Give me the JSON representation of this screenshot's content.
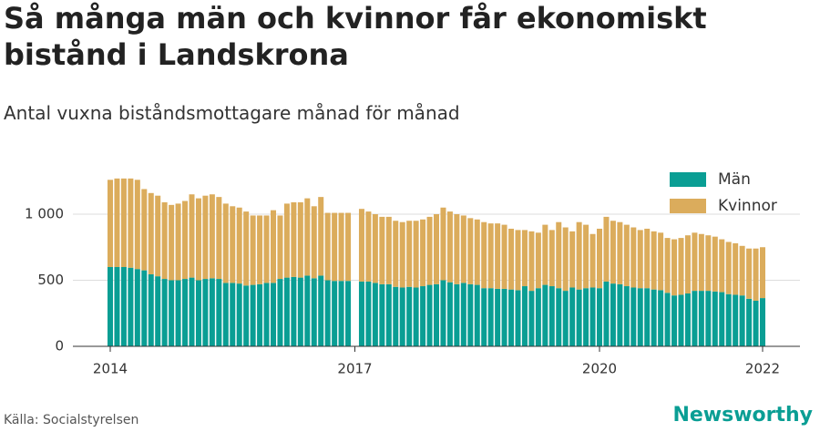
{
  "chart_data": {
    "type": "stacked_bar",
    "title": "Så många män och kvinnor får ekonomiskt bistånd i Landskrona",
    "subtitle": "Antal vuxna biståndsmottagare månad för månad",
    "source": "Källa: Socialstyrelsen",
    "brand": "Newsworthy",
    "categories": [
      "2014",
      null,
      null,
      null,
      null,
      null,
      null,
      null,
      null,
      null,
      null,
      null,
      null,
      null,
      null,
      null,
      null,
      null,
      null,
      null,
      null,
      null,
      null,
      null,
      null,
      null,
      null,
      null,
      null,
      null,
      null,
      null,
      null,
      null,
      null,
      null,
      "2017",
      null,
      null,
      null,
      null,
      null,
      null,
      null,
      null,
      null,
      null,
      null,
      null,
      null,
      null,
      null,
      null,
      null,
      null,
      null,
      null,
      null,
      null,
      null,
      null,
      null,
      null,
      null,
      null,
      null,
      null,
      null,
      null,
      null,
      null,
      null,
      "2020",
      null,
      null,
      null,
      null,
      null,
      null,
      null,
      null,
      null,
      null,
      null,
      null,
      null,
      null,
      null,
      null,
      null,
      null,
      null,
      null,
      null,
      null,
      null,
      "2022"
    ],
    "series": [
      {
        "name": "Män",
        "color": "#0a9e94",
        "values": [
          600,
          600,
          600,
          595,
          585,
          575,
          545,
          530,
          510,
          500,
          500,
          510,
          520,
          500,
          510,
          515,
          510,
          480,
          480,
          475,
          460,
          465,
          470,
          480,
          480,
          510,
          520,
          525,
          520,
          535,
          515,
          535,
          500,
          495,
          495,
          495,
          null,
          490,
          490,
          480,
          470,
          470,
          450,
          445,
          450,
          445,
          455,
          465,
          470,
          500,
          485,
          470,
          480,
          470,
          465,
          440,
          440,
          435,
          435,
          430,
          425,
          455,
          420,
          440,
          465,
          455,
          440,
          420,
          445,
          430,
          440,
          445,
          440,
          490,
          475,
          470,
          455,
          445,
          440,
          440,
          430,
          425,
          405,
          385,
          390,
          400,
          420,
          420,
          420,
          415,
          410,
          395,
          390,
          385,
          360,
          345,
          365
        ]
      },
      {
        "name": "Kvinnor",
        "color": "#dbac5c",
        "values": [
          660,
          670,
          670,
          675,
          675,
          615,
          615,
          610,
          580,
          570,
          580,
          590,
          630,
          620,
          630,
          635,
          620,
          600,
          580,
          575,
          560,
          525,
          520,
          510,
          550,
          480,
          560,
          565,
          570,
          585,
          545,
          595,
          510,
          515,
          515,
          515,
          null,
          550,
          530,
          520,
          510,
          510,
          500,
          495,
          500,
          505,
          505,
          515,
          530,
          550,
          535,
          530,
          510,
          500,
          495,
          500,
          490,
          495,
          485,
          460,
          455,
          425,
          450,
          420,
          455,
          425,
          500,
          480,
          425,
          510,
          480,
          405,
          450,
          490,
          475,
          470,
          465,
          455,
          440,
          450,
          440,
          435,
          415,
          425,
          430,
          440,
          440,
          430,
          420,
          415,
          400,
          395,
          390,
          375,
          380,
          395,
          385
        ]
      }
    ],
    "ylim": [
      0,
      1300
    ],
    "yticks": [
      0,
      500,
      {
        "value": 1000,
        "label": "1 000"
      }
    ],
    "grid": true,
    "legend": "top-right"
  }
}
